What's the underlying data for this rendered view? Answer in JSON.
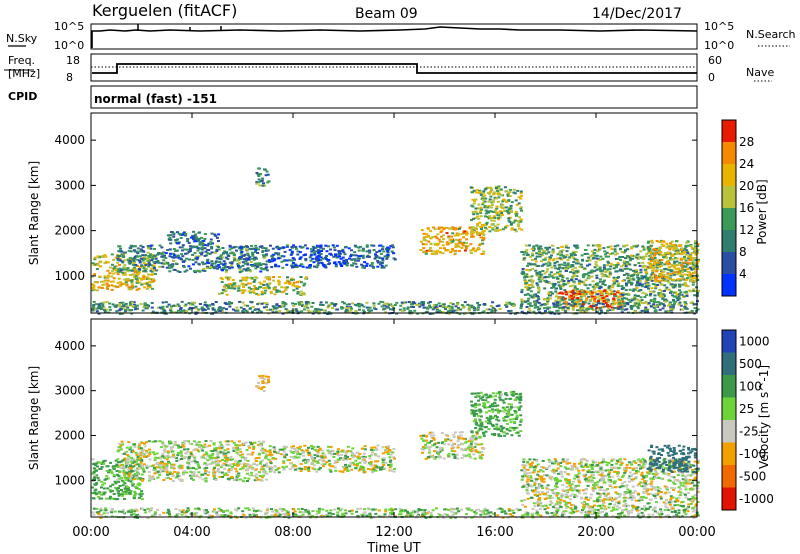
{
  "header": {
    "title": "Kerguelen (fitACF)",
    "beam": "Beam 09",
    "date": "14/Dec/2017"
  },
  "panels": {
    "nsky": {
      "label": "N.Sky",
      "left_ticks": [
        "10^5",
        "10^0"
      ],
      "right_ticks": [
        "10^5",
        "10^0"
      ],
      "right_label": "N.Search"
    },
    "freq": {
      "label_line1": "Freq.",
      "label_line2": "[MHz]",
      "left_ticks": [
        "18",
        "8"
      ],
      "right_ticks": [
        "60",
        "0"
      ],
      "right_label": "Nave",
      "cpid_label": "CPID"
    },
    "cpid_text": "normal (fast) -151"
  },
  "chart_data": [
    {
      "type": "heatmap",
      "name": "power",
      "ylabel": "Slant Range [km]",
      "yticks": [
        "4000",
        "3000",
        "2000",
        "1000"
      ],
      "ylim": [
        180,
        4600
      ],
      "colorbar_label": "Power [dB]",
      "colorbar_ticks": [
        "28",
        "24",
        "20",
        "16",
        "12",
        "8",
        "4"
      ],
      "colors": [
        "#0033ff",
        "#2a4ea3",
        "#2f7d6e",
        "#3a9a57",
        "#b8c23a",
        "#e8b400",
        "#f58a00",
        "#e81a00"
      ],
      "regions": [
        {
          "t": [
            0.0,
            2.5
          ],
          "r": [
            700,
            1500
          ],
          "v": 20
        },
        {
          "t": [
            1.0,
            7.0
          ],
          "r": [
            1100,
            1700
          ],
          "v": 10
        },
        {
          "t": [
            3.0,
            5.0
          ],
          "r": [
            1700,
            2000
          ],
          "v": 8
        },
        {
          "t": [
            5.0,
            8.5
          ],
          "r": [
            600,
            1000
          ],
          "v": 18
        },
        {
          "t": [
            6.5,
            7.0
          ],
          "r": [
            3000,
            3400
          ],
          "v": 10
        },
        {
          "t": [
            7.0,
            12.0
          ],
          "r": [
            1200,
            1700
          ],
          "v": 6
        },
        {
          "t": [
            13.0,
            15.5
          ],
          "r": [
            1500,
            2100
          ],
          "v": 22
        },
        {
          "t": [
            15.0,
            17.0
          ],
          "r": [
            2000,
            3000
          ],
          "v": 16
        },
        {
          "t": [
            17.0,
            24.0
          ],
          "r": [
            400,
            1700
          ],
          "v": 14
        },
        {
          "t": [
            18.5,
            21.0
          ],
          "r": [
            300,
            700
          ],
          "v": 26
        },
        {
          "t": [
            22.0,
            24.0
          ],
          "r": [
            900,
            1800
          ],
          "v": 20
        },
        {
          "t": [
            0.0,
            24.0
          ],
          "r": [
            180,
            450
          ],
          "v": 12
        }
      ]
    },
    {
      "type": "heatmap",
      "name": "velocity",
      "ylabel": "Slant Range [km]",
      "yticks": [
        "4000",
        "3000",
        "2000",
        "1000"
      ],
      "ylim": [
        180,
        4600
      ],
      "colorbar_label": "Velocity [m s^-1]",
      "colorbar_ticks": [
        "1000",
        "500",
        "100",
        "25",
        "-25",
        "-100",
        "-500",
        "-1000"
      ],
      "colors": [
        "#2044b8",
        "#2f6f7a",
        "#3b9a4a",
        "#6cd43a",
        "#c8c8c0",
        "#f2a000",
        "#f06a00",
        "#e01400"
      ],
      "regions": [
        {
          "t": [
            0.0,
            2.0
          ],
          "r": [
            600,
            1500
          ],
          "v": 100
        },
        {
          "t": [
            1.0,
            7.0
          ],
          "r": [
            1000,
            1900
          ],
          "v": 0
        },
        {
          "t": [
            6.5,
            7.0
          ],
          "r": [
            3000,
            3400
          ],
          "v": -100
        },
        {
          "t": [
            7.0,
            12.0
          ],
          "r": [
            1200,
            1800
          ],
          "v": 0
        },
        {
          "t": [
            13.0,
            15.5
          ],
          "r": [
            1500,
            2100
          ],
          "v": 0
        },
        {
          "t": [
            15.0,
            17.0
          ],
          "r": [
            2000,
            3000
          ],
          "v": 100
        },
        {
          "t": [
            17.0,
            24.0
          ],
          "r": [
            400,
            1500
          ],
          "v": 0
        },
        {
          "t": [
            22.0,
            24.0
          ],
          "r": [
            1200,
            1800
          ],
          "v": 500
        },
        {
          "t": [
            0.0,
            24.0
          ],
          "r": [
            180,
            400
          ],
          "v": 25
        }
      ]
    }
  ],
  "xaxis": {
    "ticks": [
      "00:00",
      "04:00",
      "08:00",
      "12:00",
      "16:00",
      "20:00",
      "00:00"
    ],
    "label": "Time UT"
  }
}
